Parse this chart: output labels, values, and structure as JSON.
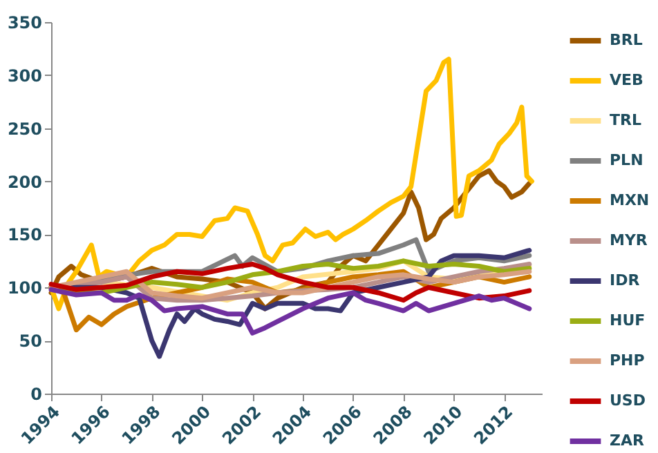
{
  "chart_data": {
    "type": "line",
    "xlim": [
      1994,
      2013.5
    ],
    "xticks": [
      1994,
      1996,
      1998,
      2000,
      2002,
      2004,
      2006,
      2008,
      2010,
      2012
    ],
    "ylim": [
      0,
      350
    ],
    "yticks": [
      0,
      50,
      100,
      150,
      200,
      250,
      300,
      350
    ],
    "grid": false,
    "legend": "right",
    "marker": "none",
    "line_style": "solid",
    "series": [
      {
        "name": "BRL",
        "color": "#9c5700",
        "x": [
          1994,
          1994.3,
          1994.8,
          1995.2,
          1996,
          1997,
          1998,
          1999,
          2000,
          2001,
          2002,
          2002.5,
          2003,
          2004,
          2005,
          2005.5,
          2006,
          2006.5,
          2007,
          2007.5,
          2008,
          2008.3,
          2008.6,
          2008.9,
          2009.2,
          2009.5,
          2010,
          2010.5,
          2011,
          2011.4,
          2011.7,
          2012,
          2012.3,
          2012.7,
          2013
        ],
        "values": [
          95,
          110,
          120,
          112,
          105,
          110,
          118,
          110,
          108,
          105,
          95,
          80,
          90,
          100,
          105,
          120,
          130,
          125,
          140,
          155,
          170,
          190,
          175,
          145,
          150,
          165,
          175,
          190,
          205,
          210,
          200,
          195,
          185,
          190,
          198
        ]
      },
      {
        "name": "VEB",
        "color": "#ffc000",
        "x": [
          1994,
          1994.3,
          1994.7,
          1995,
          1995.6,
          1995.9,
          1996.2,
          1997,
          1997.5,
          1998,
          1998.5,
          1999,
          1999.5,
          2000,
          2000.5,
          2001,
          2001.3,
          2001.8,
          2002.2,
          2002.5,
          2002.8,
          2003.2,
          2003.6,
          2004.1,
          2004.5,
          2005,
          2005.3,
          2005.6,
          2006,
          2006.5,
          2007,
          2007.5,
          2008,
          2008.3,
          2008.6,
          2008.9,
          2009.3,
          2009.6,
          2009.8,
          2010.1,
          2010.3,
          2010.6,
          2011,
          2011.5,
          2011.8,
          2012.2,
          2012.5,
          2012.7,
          2012.9,
          2013.1
        ],
        "values": [
          100,
          80,
          105,
          115,
          140,
          110,
          115,
          110,
          125,
          135,
          140,
          150,
          150,
          148,
          163,
          165,
          175,
          172,
          150,
          130,
          125,
          140,
          142,
          155,
          148,
          152,
          145,
          150,
          155,
          163,
          172,
          180,
          186,
          195,
          240,
          285,
          295,
          312,
          315,
          167,
          168,
          205,
          210,
          220,
          235,
          245,
          255,
          270,
          205,
          200
        ]
      },
      {
        "name": "TRL",
        "color": "#ffe08a",
        "x": [
          1994,
          1996,
          1998,
          2000,
          2001,
          2002,
          2003,
          2004,
          2006,
          2007,
          2008,
          2009,
          2010,
          2011,
          2012,
          2013
        ],
        "values": [
          100,
          105,
          100,
          92,
          88,
          95,
          100,
          110,
          115,
          118,
          125,
          110,
          108,
          112,
          115,
          120
        ]
      },
      {
        "name": "PLN",
        "color": "#808080",
        "x": [
          1994,
          1996,
          1998,
          2000,
          2001.3,
          2001.6,
          2002,
          2003,
          2004,
          2005,
          2006,
          2007,
          2008,
          2008.5,
          2009,
          2010,
          2011,
          2012,
          2013
        ],
        "values": [
          100,
          108,
          115,
          115,
          130,
          120,
          128,
          115,
          118,
          125,
          130,
          132,
          140,
          145,
          115,
          125,
          128,
          125,
          130
        ]
      },
      {
        "name": "MXN",
        "color": "#cc7a00",
        "x": [
          1994,
          1994.5,
          1995,
          1995.5,
          1996,
          1996.5,
          1997,
          1998,
          1999,
          2000,
          2001,
          2002,
          2003,
          2004,
          2005,
          2006,
          2007,
          2008,
          2009,
          2010,
          2011,
          2012,
          2013
        ],
        "values": [
          100,
          95,
          60,
          72,
          65,
          75,
          82,
          90,
          95,
          100,
          108,
          105,
          95,
          98,
          105,
          110,
          112,
          115,
          100,
          105,
          110,
          105,
          110
        ]
      },
      {
        "name": "MYR",
        "color": "#b98f8a",
        "x": [
          1994,
          1996,
          1997,
          1998,
          1999,
          2000,
          2001,
          2002,
          2003,
          2004,
          2005,
          2006,
          2007,
          2008,
          2009,
          2010,
          2011,
          2012,
          2013
        ],
        "values": [
          100,
          105,
          110,
          90,
          88,
          88,
          90,
          92,
          95,
          97,
          98,
          100,
          105,
          110,
          105,
          110,
          115,
          118,
          122
        ]
      },
      {
        "name": "IDR",
        "color": "#3b3670",
        "x": [
          1994,
          1996,
          1997,
          1997.5,
          1998,
          1998.3,
          1998.7,
          1999,
          1999.3,
          1999.7,
          2000,
          2000.5,
          2001,
          2001.5,
          2002,
          2002.5,
          2003,
          2004,
          2004.5,
          2005,
          2005.5,
          2006,
          2007,
          2008,
          2009,
          2009.5,
          2010,
          2011,
          2012,
          2013
        ],
        "values": [
          100,
          100,
          95,
          90,
          50,
          35,
          60,
          75,
          68,
          80,
          75,
          70,
          68,
          65,
          85,
          80,
          85,
          85,
          80,
          80,
          78,
          95,
          100,
          105,
          110,
          125,
          130,
          130,
          128,
          135
        ]
      },
      {
        "name": "HUF",
        "color": "#9aad14",
        "x": [
          1994,
          1995,
          1996,
          1997,
          1998,
          1999,
          2000,
          2001,
          2002,
          2003,
          2004,
          2005,
          2006,
          2007,
          2008,
          2009,
          2010,
          2011,
          2012,
          2013
        ],
        "values": [
          100,
          95,
          95,
          100,
          105,
          103,
          100,
          105,
          112,
          115,
          120,
          122,
          118,
          120,
          125,
          120,
          122,
          120,
          115,
          118
        ]
      },
      {
        "name": "PHP",
        "color": "#d9a080",
        "x": [
          1994,
          1995,
          1996,
          1997,
          1998,
          1999,
          2000,
          2001,
          2002,
          2003,
          2004,
          2005,
          2006,
          2007,
          2008,
          2009,
          2010,
          2011,
          2012,
          2013
        ],
        "values": [
          100,
          105,
          110,
          115,
          95,
          92,
          90,
          95,
          100,
          95,
          95,
          100,
          105,
          110,
          112,
          108,
          105,
          110,
          112,
          115
        ]
      },
      {
        "name": "USD",
        "color": "#c00000",
        "x": [
          1994,
          1995,
          1996,
          1997,
          1998,
          1999,
          2000,
          2001,
          2002,
          2002.5,
          2003,
          2004,
          2005,
          2006,
          2007,
          2008,
          2008.5,
          2009,
          2010,
          2011,
          2012,
          2013
        ],
        "values": [
          103,
          98,
          100,
          102,
          110,
          115,
          113,
          118,
          122,
          118,
          112,
          105,
          100,
          100,
          95,
          88,
          95,
          100,
          95,
          90,
          92,
          97
        ]
      },
      {
        "name": "ZAR",
        "color": "#7030a0",
        "x": [
          1994,
          1995,
          1996,
          1996.5,
          1997,
          1997.5,
          1998,
          1998.5,
          1999,
          2000,
          2001,
          2001.6,
          2002,
          2002.5,
          2003,
          2004,
          2004.5,
          2005,
          2006,
          2006.5,
          2007,
          2008,
          2008.5,
          2009,
          2010,
          2011,
          2011.5,
          2012,
          2013
        ],
        "values": [
          98,
          93,
          95,
          88,
          88,
          93,
          88,
          78,
          80,
          82,
          75,
          75,
          57,
          62,
          68,
          80,
          85,
          90,
          95,
          88,
          85,
          78,
          85,
          78,
          85,
          92,
          88,
          90,
          80
        ]
      }
    ]
  }
}
